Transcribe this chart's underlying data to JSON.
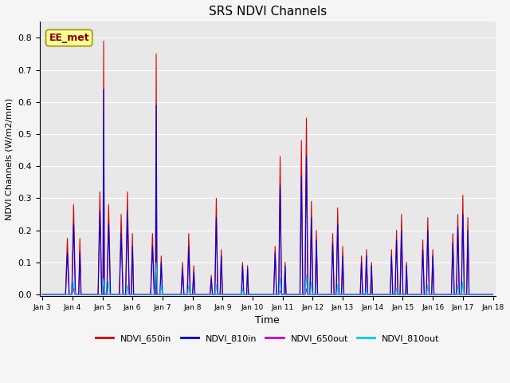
{
  "title": "SRS NDVI Channels",
  "xlabel": "Time",
  "ylabel": "NDVI Channels (W/m2/mm)",
  "ylim": [
    -0.005,
    0.85
  ],
  "annotation": "EE_met",
  "legend": [
    "NDVI_650in",
    "NDVI_810in",
    "NDVI_650out",
    "NDVI_810out"
  ],
  "colors": {
    "NDVI_650in": "#DD0000",
    "NDVI_810in": "#0000DD",
    "NDVI_650out": "#CC00CC",
    "NDVI_810out": "#00CCEE"
  },
  "tick_labels": [
    "Jan 3",
    "Jan 4",
    "Jan 5",
    "Jan 6",
    "Jan 7",
    "Jan 8",
    "Jan 9",
    "Jan 10",
    "Jan 11",
    "Jan 12",
    "Jan 13",
    "Jan 14",
    "Jan 15",
    "Jan 16",
    "Jan 17",
    "Jan 18"
  ],
  "tick_positions": [
    0,
    24,
    48,
    72,
    96,
    120,
    144,
    168,
    192,
    216,
    240,
    264,
    288,
    312,
    336,
    360
  ],
  "background_color": "#e8e8e8",
  "grid_color": "#ffffff",
  "fig_facecolor": "#f5f5f5"
}
